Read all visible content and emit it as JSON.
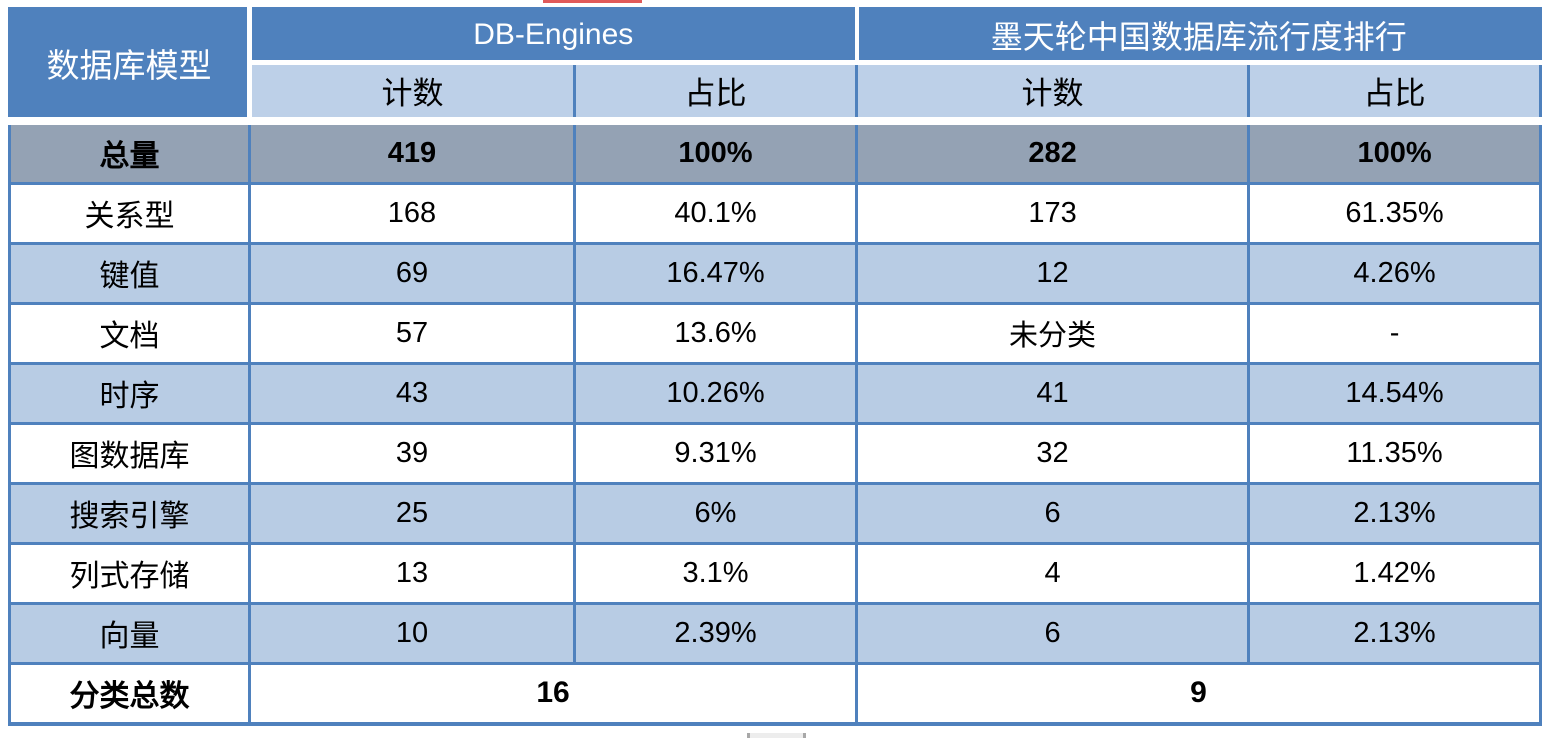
{
  "colors": {
    "header_blue": "#4f81bd",
    "subheader_light_blue": "#bdd0e8",
    "band_row_light_blue": "#b8cce4",
    "total_row_gray": "#94a2b4",
    "grid_line_blue": "#4f81bd",
    "header_text": "#ffffff",
    "body_text": "#000000",
    "clipped_red_line": "#e05a5a"
  },
  "chart_data": {
    "type": "table",
    "corner_header": "数据库模型",
    "column_groups": [
      {
        "label": "DB-Engines",
        "subcolumns": [
          "计数",
          "占比"
        ]
      },
      {
        "label": "墨天轮中国数据库流行度排行",
        "subcolumns": [
          "计数",
          "占比"
        ]
      }
    ],
    "rows": [
      {
        "label": "总量",
        "emphasis": "total",
        "values": [
          "419",
          "100%",
          "282",
          "100%"
        ]
      },
      {
        "label": "关系型",
        "values": [
          "168",
          "40.1%",
          "173",
          "61.35%"
        ]
      },
      {
        "label": "键值",
        "values": [
          "69",
          "16.47%",
          "12",
          "4.26%"
        ]
      },
      {
        "label": "文档",
        "values": [
          "57",
          "13.6%",
          "未分类",
          "-"
        ]
      },
      {
        "label": "时序",
        "values": [
          "43",
          "10.26%",
          "41",
          "14.54%"
        ]
      },
      {
        "label": "图数据库",
        "values": [
          "39",
          "9.31%",
          "32",
          "11.35%"
        ]
      },
      {
        "label": "搜索引擎",
        "values": [
          "25",
          "6%",
          "6",
          "2.13%"
        ]
      },
      {
        "label": "列式存储",
        "values": [
          "13",
          "3.1%",
          "4",
          "1.42%"
        ]
      },
      {
        "label": "向量",
        "values": [
          "10",
          "2.39%",
          "6",
          "2.13%"
        ]
      }
    ],
    "footer": {
      "label": "分类总数",
      "merged_values": [
        "16",
        "9"
      ]
    }
  }
}
